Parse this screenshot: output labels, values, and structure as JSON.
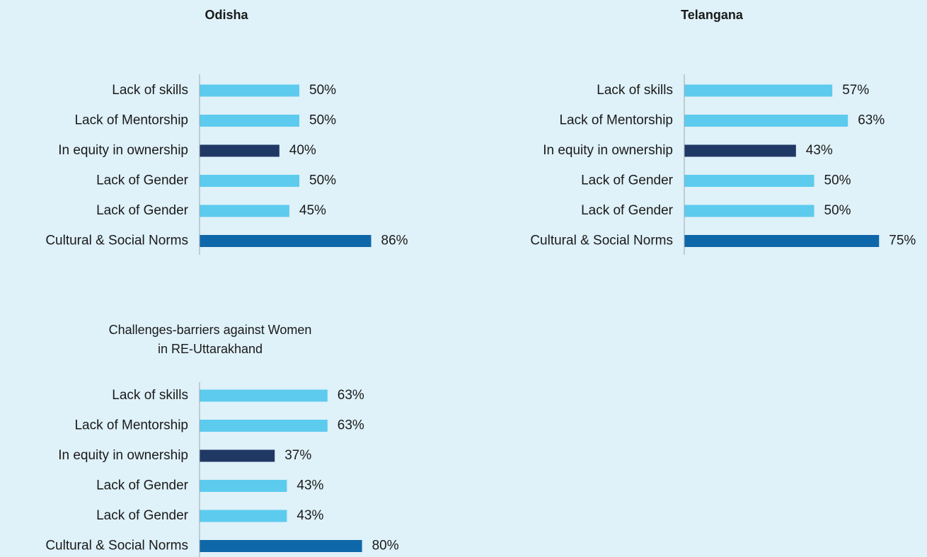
{
  "chart_data": [
    {
      "type": "barh",
      "title": "Odisha",
      "categories": [
        "Lack of skills",
        "Lack of Mentorship",
        "In equity in ownership",
        "Lack of Gender",
        "Lack of Gender",
        "Cultural & Social Norms"
      ],
      "values": [
        50,
        50,
        40,
        50,
        45,
        86
      ],
      "value_labels": [
        "50%",
        "50%",
        "40%",
        "50%",
        "45%",
        "86%"
      ],
      "colors": [
        "#5ccbee",
        "#5ccbee",
        "#1f3864",
        "#5ccbee",
        "#5ccbee",
        "#0e67a8"
      ],
      "xlim": [
        0,
        100
      ]
    },
    {
      "type": "barh",
      "title": "Telangana",
      "categories": [
        "Lack of skills",
        "Lack of Mentorship",
        "In equity in ownership",
        "Lack of Gender",
        "Lack of Gender",
        "Cultural & Social Norms"
      ],
      "values": [
        57,
        63,
        43,
        50,
        50,
        75
      ],
      "value_labels": [
        "57%",
        "63%",
        "43%",
        "50%",
        "50%",
        "75%"
      ],
      "colors": [
        "#5ccbee",
        "#5ccbee",
        "#1f3864",
        "#5ccbee",
        "#5ccbee",
        "#0e67a8"
      ],
      "xlim": [
        0,
        100
      ]
    },
    {
      "type": "barh",
      "title": "Challenges-barriers against Women in RE-Uttarakhand",
      "categories": [
        "Lack of skills",
        "Lack of Mentorship",
        "In equity in ownership",
        "Lack of Gender",
        "Lack of Gender",
        "Cultural & Social Norms"
      ],
      "values": [
        63,
        63,
        37,
        43,
        43,
        80
      ],
      "value_labels": [
        "63%",
        "63%",
        "37%",
        "43%",
        "43%",
        "80%"
      ],
      "colors": [
        "#5ccbee",
        "#5ccbee",
        "#1f3864",
        "#5ccbee",
        "#5ccbee",
        "#0e67a8"
      ],
      "xlim": [
        0,
        100
      ]
    }
  ]
}
